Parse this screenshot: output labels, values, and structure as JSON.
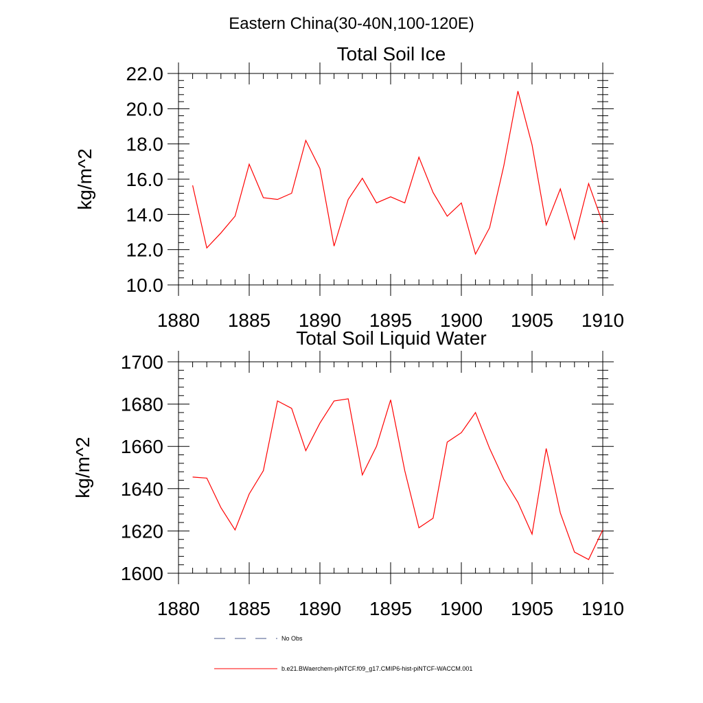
{
  "figure": {
    "title": "Eastern China(30-40N,100-120E)"
  },
  "chart_data": [
    {
      "type": "line",
      "title": "Total Soil Ice",
      "xlabel": "",
      "ylabel": "kg/m^2",
      "xlim": [
        1880,
        1910
      ],
      "ylim": [
        10,
        22
      ],
      "xticks": [
        1880,
        1885,
        1890,
        1895,
        1900,
        1905,
        1910
      ],
      "yticks": [
        10,
        12,
        14,
        16,
        18,
        20,
        22
      ],
      "ytick_labels": [
        "10.0",
        "12.0",
        "14.0",
        "16.0",
        "18.0",
        "20.0",
        "22.0"
      ],
      "grid": false,
      "series": [
        {
          "name": "b.e21.BWaerchem-piNTCF.f09_g17.CMIP6-hist-piNTCF-WACCM.001",
          "color": "#ff0000",
          "x": [
            1881,
            1882,
            1883,
            1884,
            1885,
            1886,
            1887,
            1888,
            1889,
            1890,
            1891,
            1892,
            1893,
            1894,
            1895,
            1896,
            1897,
            1898,
            1899,
            1900,
            1901,
            1902,
            1903,
            1904,
            1905,
            1906,
            1907,
            1908,
            1909,
            1910
          ],
          "y": [
            15.65,
            12.1,
            12.95,
            13.9,
            16.85,
            14.95,
            14.85,
            15.2,
            18.2,
            16.6,
            12.2,
            14.85,
            16.05,
            14.65,
            15.0,
            14.65,
            17.25,
            15.25,
            13.9,
            14.65,
            11.75,
            13.25,
            16.75,
            21.0,
            17.95,
            13.4,
            15.45,
            12.6,
            15.75,
            13.5
          ]
        }
      ]
    },
    {
      "type": "line",
      "title": "Total Soil Liquid Water",
      "xlabel": "",
      "ylabel": "kg/m^2",
      "xlim": [
        1880,
        1910
      ],
      "ylim": [
        1600,
        1700
      ],
      "xticks": [
        1880,
        1885,
        1890,
        1895,
        1900,
        1905,
        1910
      ],
      "yticks": [
        1600,
        1620,
        1640,
        1660,
        1680,
        1700
      ],
      "ytick_labels": [
        "1600",
        "1620",
        "1640",
        "1660",
        "1680",
        "1700"
      ],
      "grid": false,
      "series": [
        {
          "name": "b.e21.BWaerchem-piNTCF.f09_g17.CMIP6-hist-piNTCF-WACCM.001",
          "color": "#ff0000",
          "x": [
            1881,
            1882,
            1883,
            1884,
            1885,
            1886,
            1887,
            1888,
            1889,
            1890,
            1891,
            1892,
            1893,
            1894,
            1895,
            1896,
            1897,
            1898,
            1899,
            1900,
            1901,
            1902,
            1903,
            1904,
            1905,
            1906,
            1907,
            1908,
            1909,
            1910
          ],
          "y": [
            1645.5,
            1645.0,
            1631.0,
            1620.5,
            1637.5,
            1648.5,
            1681.5,
            1678.0,
            1658.0,
            1671.0,
            1681.5,
            1682.5,
            1646.5,
            1660.0,
            1682.0,
            1648.5,
            1621.5,
            1626.0,
            1662.0,
            1666.5,
            1676.0,
            1659.0,
            1644.5,
            1633.5,
            1618.5,
            1659.0,
            1628.5,
            1610.0,
            1606.5,
            1620.5
          ]
        }
      ]
    }
  ],
  "legend": {
    "placement": "bottom-center",
    "items": [
      {
        "label": "No Obs",
        "style": "dashed",
        "color": "#44558a"
      },
      {
        "label": "b.e21.BWaerchem-piNTCF.f09_g17.CMIP6-hist-piNTCF-WACCM.001",
        "style": "solid",
        "color": "#ff0000"
      }
    ]
  }
}
